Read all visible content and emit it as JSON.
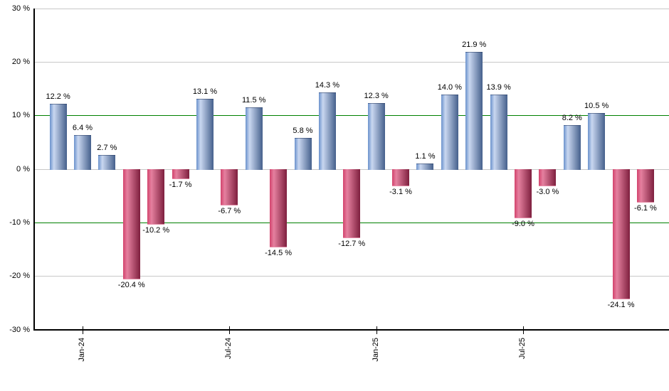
{
  "chart_data": {
    "type": "bar",
    "title": "",
    "xlabel": "",
    "ylabel": "",
    "ylim": [
      -30,
      30
    ],
    "grid": "horizontal",
    "legend_position": "none",
    "value_label_format": "{value} %",
    "y_ticks": [
      {
        "value": 30,
        "label": "30 %"
      },
      {
        "value": 20,
        "label": "20 %"
      },
      {
        "value": 10,
        "label": "10 %"
      },
      {
        "value": 0,
        "label": "0 %"
      },
      {
        "value": -10,
        "label": "-10 %"
      },
      {
        "value": -20,
        "label": "-20 %"
      },
      {
        "value": -30,
        "label": "-30 %"
      }
    ],
    "threshold_lines": [
      10,
      -10
    ],
    "x_ticks": [
      {
        "bar_index": 1,
        "label": "Jan-24"
      },
      {
        "bar_index": 7,
        "label": "Jul-24"
      },
      {
        "bar_index": 13,
        "label": "Jan-25"
      },
      {
        "bar_index": 19,
        "label": "Jul-25"
      }
    ],
    "bars": [
      {
        "value": 12.2,
        "label": "12.2 %"
      },
      {
        "value": 6.4,
        "label": "6.4 %"
      },
      {
        "value": 2.7,
        "label": "2.7 %"
      },
      {
        "value": -20.4,
        "label": "-20.4 %"
      },
      {
        "value": -10.2,
        "label": "-10.2 %"
      },
      {
        "value": -1.7,
        "label": "-1.7 %"
      },
      {
        "value": 13.1,
        "label": "13.1 %"
      },
      {
        "value": -6.7,
        "label": "-6.7 %"
      },
      {
        "value": 11.5,
        "label": "11.5 %"
      },
      {
        "value": -14.5,
        "label": "-14.5 %"
      },
      {
        "value": 5.8,
        "label": "5.8 %"
      },
      {
        "value": 14.3,
        "label": "14.3 %"
      },
      {
        "value": -12.7,
        "label": "-12.7 %"
      },
      {
        "value": 12.3,
        "label": "12.3 %"
      },
      {
        "value": -3.1,
        "label": "-3.1 %"
      },
      {
        "value": 1.1,
        "label": "1.1 %"
      },
      {
        "value": 14.0,
        "label": "14.0 %"
      },
      {
        "value": 21.9,
        "label": "21.9 %"
      },
      {
        "value": 13.9,
        "label": "13.9 %"
      },
      {
        "value": -9.0,
        "label": "-9.0 %"
      },
      {
        "value": -3.0,
        "label": "-3.0 %"
      },
      {
        "value": 8.2,
        "label": "8.2 %"
      },
      {
        "value": 10.5,
        "label": "10.5 %"
      },
      {
        "value": -24.1,
        "label": "-24.1 %"
      },
      {
        "value": -6.1,
        "label": "-6.1 %"
      }
    ],
    "colors": {
      "positive_edge": "#6b92cc",
      "positive_highlight": "#c9d7f0",
      "positive_dark": "#45608c",
      "negative_edge": "#d2436d",
      "negative_highlight": "#e5809f",
      "negative_dark": "#7e1f3e",
      "threshold_line": "#008000",
      "gridline": "#c8c8c8",
      "axis": "#000000",
      "label_text": "#000000",
      "background": "#ffffff"
    }
  }
}
